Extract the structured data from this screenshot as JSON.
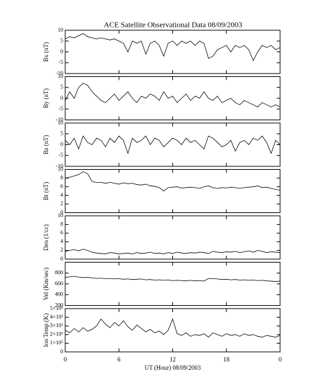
{
  "chart_data": [
    {
      "type": "line",
      "title": "ACE Satellite Observational Data   08/09/2003",
      "ylabel": "Bx (nT)",
      "xlim": [
        0,
        24
      ],
      "ylim": [
        -10,
        10
      ],
      "yticks": [
        -10,
        -5,
        0,
        5,
        10
      ],
      "x": [
        0,
        0.5,
        1,
        1.5,
        2,
        2.5,
        3,
        3.5,
        4,
        4.5,
        5,
        5.5,
        6,
        6.5,
        7,
        7.5,
        8,
        8.5,
        9,
        9.5,
        10,
        10.5,
        11,
        11.5,
        12,
        12.5,
        13,
        13.5,
        14,
        14.5,
        15,
        15.5,
        16,
        16.5,
        17,
        17.5,
        18,
        18.5,
        19,
        19.5,
        20,
        20.5,
        21,
        21.5,
        22,
        22.5,
        23,
        23.5,
        24
      ],
      "values": [
        6,
        7,
        6.5,
        7.5,
        8.5,
        7,
        6.5,
        6,
        6.5,
        6,
        5.5,
        6,
        5,
        4,
        0,
        5,
        4,
        5,
        -1,
        4,
        5,
        3,
        -2,
        4,
        5,
        3,
        5,
        4,
        5,
        3,
        5,
        4,
        -3,
        -2,
        1,
        2,
        3,
        0,
        3,
        2,
        3,
        1,
        -4,
        0,
        3,
        2,
        3,
        1,
        2
      ]
    },
    {
      "type": "line",
      "ylabel": "By (nT)",
      "xlim": [
        0,
        24
      ],
      "ylim": [
        -10,
        10
      ],
      "yticks": [
        -10,
        -5,
        0,
        5,
        10
      ],
      "x": [
        0,
        0.5,
        1,
        1.5,
        2,
        2.5,
        3,
        3.5,
        4,
        4.5,
        5,
        5.5,
        6,
        6.5,
        7,
        7.5,
        8,
        8.5,
        9,
        9.5,
        10,
        10.5,
        11,
        11.5,
        12,
        12.5,
        13,
        13.5,
        14,
        14.5,
        15,
        15.5,
        16,
        16.5,
        17,
        17.5,
        18,
        18.5,
        19,
        19.5,
        20,
        20.5,
        21,
        21.5,
        22,
        22.5,
        23,
        23.5,
        24
      ],
      "values": [
        -1,
        3,
        0,
        5,
        7,
        6,
        3,
        1,
        -1,
        -2,
        0,
        2,
        -1,
        1,
        3,
        0,
        -2,
        1,
        0,
        2,
        1,
        -1,
        3,
        0,
        1,
        -2,
        0,
        2,
        -1,
        1,
        0,
        3,
        0,
        -1,
        1,
        -2,
        -1,
        0,
        -2,
        -3,
        -1,
        -2,
        -3,
        -4,
        -2,
        -3,
        -4,
        -3,
        -4
      ]
    },
    {
      "type": "line",
      "ylabel": "Bz (nT)",
      "xlim": [
        0,
        24
      ],
      "ylim": [
        -10,
        10
      ],
      "yticks": [
        -10,
        -5,
        0,
        5,
        10
      ],
      "x": [
        0,
        0.5,
        1,
        1.5,
        2,
        2.5,
        3,
        3.5,
        4,
        4.5,
        5,
        5.5,
        6,
        6.5,
        7,
        7.5,
        8,
        8.5,
        9,
        9.5,
        10,
        10.5,
        11,
        11.5,
        12,
        12.5,
        13,
        13.5,
        14,
        14.5,
        15,
        15.5,
        16,
        16.5,
        17,
        17.5,
        18,
        18.5,
        19,
        19.5,
        20,
        20.5,
        21,
        21.5,
        22,
        22.5,
        23,
        23.5,
        24
      ],
      "values": [
        2,
        0,
        3,
        -2,
        4,
        1,
        0,
        3,
        2,
        -1,
        3,
        1,
        4,
        2,
        -4,
        3,
        1,
        2,
        4,
        0,
        3,
        2,
        -1,
        1,
        3,
        2,
        0,
        3,
        1,
        2,
        0,
        -2,
        4,
        3,
        1,
        -1,
        0,
        2,
        -3,
        1,
        2,
        0,
        3,
        2,
        4,
        1,
        -4,
        2,
        0
      ]
    },
    {
      "type": "line",
      "ylabel": "Bt (nT)",
      "xlim": [
        0,
        24
      ],
      "ylim": [
        0,
        10
      ],
      "yticks": [
        0,
        2,
        4,
        6,
        8,
        10
      ],
      "x": [
        0,
        0.5,
        1,
        1.5,
        2,
        2.5,
        3,
        3.5,
        4,
        4.5,
        5,
        5.5,
        6,
        6.5,
        7,
        7.5,
        8,
        8.5,
        9,
        9.5,
        10,
        10.5,
        11,
        11.5,
        12,
        12.5,
        13,
        13.5,
        14,
        14.5,
        15,
        15.5,
        16,
        16.5,
        17,
        17.5,
        18,
        18.5,
        19,
        19.5,
        20,
        20.5,
        21,
        21.5,
        22,
        22.5,
        23,
        23.5,
        24
      ],
      "values": [
        8,
        8.2,
        8.5,
        8.8,
        9.5,
        9,
        7.2,
        7,
        7,
        6.8,
        7,
        6.8,
        6.6,
        6.9,
        6.7,
        6.8,
        6.5,
        6.4,
        6.6,
        6.2,
        6.1,
        5.8,
        5,
        5.8,
        5.9,
        6,
        5.7,
        5.8,
        5.9,
        5.8,
        5.6,
        6,
        6.2,
        5.8,
        5.6,
        5.8,
        5.7,
        5.9,
        5.8,
        5.6,
        5.8,
        5.9,
        6,
        6.2,
        5.8,
        5.9,
        5.6,
        5.4,
        5.2
      ]
    },
    {
      "type": "line",
      "ylabel": "Den (1/cc)",
      "xlim": [
        0,
        24
      ],
      "ylim": [
        0,
        10
      ],
      "yticks": [
        0,
        2,
        4,
        6,
        8,
        10
      ],
      "x": [
        0,
        0.5,
        1,
        1.5,
        2,
        2.5,
        3,
        3.5,
        4,
        4.5,
        5,
        5.5,
        6,
        6.5,
        7,
        7.5,
        8,
        8.5,
        9,
        9.5,
        10,
        10.5,
        11,
        11.5,
        12,
        12.5,
        13,
        13.5,
        14,
        14.5,
        15,
        15.5,
        16,
        16.5,
        17,
        17.5,
        18,
        18.5,
        19,
        19.5,
        20,
        20.5,
        21,
        21.5,
        22,
        22.5,
        23,
        23.5,
        24
      ],
      "values": [
        1.8,
        2,
        2.2,
        1.9,
        2.3,
        2,
        1.6,
        1.4,
        1.3,
        1.2,
        1.5,
        1.4,
        1.2,
        1.3,
        1.4,
        1.2,
        1.5,
        1.3,
        1.4,
        1.6,
        1.3,
        1.4,
        1.2,
        1.5,
        1.3,
        1.6,
        1.4,
        1.3,
        1.5,
        1.4,
        1.6,
        1.5,
        1.3,
        1.8,
        1.6,
        1.5,
        1.7,
        1.6,
        1.8,
        1.5,
        1.7,
        1.9,
        1.6,
        2,
        1.8,
        1.5,
        1.7,
        1.6,
        1.5
      ]
    },
    {
      "type": "line",
      "ylabel": "Vel (Km/sec)",
      "xlim": [
        0,
        24
      ],
      "ylim": [
        200,
        1000
      ],
      "yticks": [
        200,
        400,
        600,
        800
      ],
      "x": [
        0,
        0.5,
        1,
        1.5,
        2,
        2.5,
        3,
        3.5,
        4,
        4.5,
        5,
        5.5,
        6,
        6.5,
        7,
        7.5,
        8,
        8.5,
        9,
        9.5,
        10,
        10.5,
        11,
        11.5,
        12,
        12.5,
        13,
        13.5,
        14,
        14.5,
        15,
        15.5,
        16,
        16.5,
        17,
        17.5,
        18,
        18.5,
        19,
        19.5,
        20,
        20.5,
        21,
        21.5,
        22,
        22.5,
        23,
        23.5,
        24
      ],
      "values": [
        720,
        730,
        740,
        725,
        715,
        720,
        710,
        700,
        705,
        695,
        700,
        690,
        695,
        685,
        690,
        680,
        685,
        690,
        675,
        680,
        670,
        675,
        665,
        670,
        660,
        665,
        660,
        655,
        665,
        655,
        660,
        650,
        700,
        695,
        690,
        680,
        685,
        675,
        680,
        670,
        675,
        665,
        670,
        660,
        665,
        655,
        650,
        645,
        650
      ]
    },
    {
      "type": "line",
      "ylabel": "Ion Temp (K)",
      "xlabel": "UT (Hour)   08/09/2003",
      "xlim": [
        0,
        24
      ],
      "xticks": [
        0,
        6,
        12,
        18,
        {
          "value": 24,
          "label": "0"
        }
      ],
      "ylim": [
        0,
        500000
      ],
      "yticks": [
        0,
        {
          "value": 100000,
          "label": "1×10⁵"
        },
        {
          "value": 200000,
          "label": "2×10⁵"
        },
        {
          "value": 300000,
          "label": "3×10⁵"
        },
        {
          "value": 400000,
          "label": "4×10⁵"
        },
        {
          "value": 500000,
          "label": "5×10⁵"
        }
      ],
      "x": [
        0,
        0.5,
        1,
        1.5,
        2,
        2.5,
        3,
        3.5,
        4,
        4.5,
        5,
        5.5,
        6,
        6.5,
        7,
        7.5,
        8,
        8.5,
        9,
        9.5,
        10,
        10.5,
        11,
        11.5,
        12,
        12.5,
        13,
        13.5,
        14,
        14.5,
        15,
        15.5,
        16,
        16.5,
        17,
        17.5,
        18,
        18.5,
        19,
        19.5,
        20,
        20.5,
        21,
        21.5,
        22,
        22.5,
        23,
        23.5,
        24
      ],
      "values": [
        250000,
        220000,
        270000,
        230000,
        280000,
        240000,
        260000,
        300000,
        380000,
        320000,
        280000,
        340000,
        300000,
        360000,
        290000,
        250000,
        310000,
        270000,
        230000,
        260000,
        220000,
        240000,
        200000,
        250000,
        380000,
        210000,
        190000,
        220000,
        180000,
        200000,
        190000,
        210000,
        170000,
        220000,
        200000,
        180000,
        210000,
        190000,
        200000,
        180000,
        210000,
        190000,
        200000,
        180000,
        170000,
        190000,
        180000,
        170000,
        190000
      ]
    }
  ]
}
